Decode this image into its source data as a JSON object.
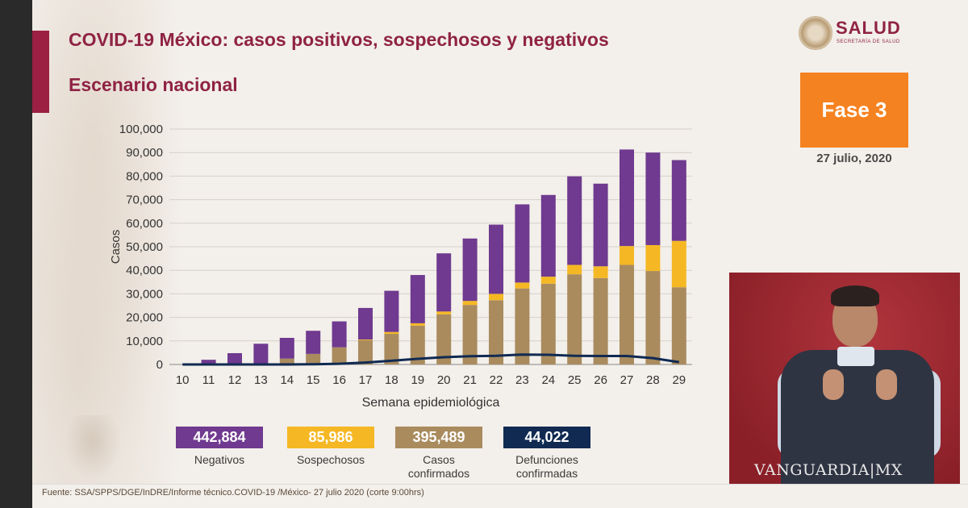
{
  "header": {
    "title": "COVID-19 México: casos positivos, sospechosos y negativos",
    "subtitle": "Escenario nacional"
  },
  "logo": {
    "name": "SALUD",
    "tagline": "SECRETARÍA DE SALUD"
  },
  "phase": {
    "label": "Fase 3",
    "date": "27 julio, 2020",
    "color": "#f58220"
  },
  "legend": [
    {
      "value": "442,884",
      "label": "Negativos",
      "color": "#6f3a8f"
    },
    {
      "value": "85,986",
      "label": "Sospechosos",
      "color": "#f5b824"
    },
    {
      "value": "395,489",
      "label": "Casos confirmados",
      "color": "#a98b5e"
    },
    {
      "value": "44,022",
      "label": "Defunciones confirmadas",
      "color": "#102a52"
    }
  ],
  "footer": {
    "source": "Fuente: SSA/SPPS/DGE/InDRE/Informe técnico.COVID-19 /México- 27 julio 2020 (corte 9:00hrs)"
  },
  "watermark": "VANGUARDIA",
  "watermark_suffix": "MX",
  "chart_data": {
    "type": "bar",
    "stacked": true,
    "ylabel": "Casos",
    "xlabel": "Semana epidemiológica",
    "ylim": [
      0,
      100000
    ],
    "yticks": [
      "0",
      "10,000",
      "20,000",
      "30,000",
      "40,000",
      "50,000",
      "60,000",
      "70,000",
      "80,000",
      "90,000",
      "100,000"
    ],
    "grid": true,
    "categories": [
      "10",
      "11",
      "12",
      "13",
      "14",
      "15",
      "16",
      "17",
      "18",
      "19",
      "20",
      "21",
      "22",
      "23",
      "24",
      "25",
      "26",
      "27",
      "28",
      "29"
    ],
    "series": [
      {
        "name": "Casos confirmados",
        "color": "#a98b5e",
        "values": [
          0,
          0,
          100,
          300,
          2500,
          4500,
          7300,
          10300,
          13000,
          16500,
          21300,
          25300,
          27300,
          32300,
          34300,
          38300,
          36700,
          42300,
          39700,
          32800
        ]
      },
      {
        "name": "Sospechosos",
        "color": "#f5b824",
        "values": [
          0,
          0,
          0,
          0,
          0,
          0,
          0,
          300,
          800,
          1000,
          1200,
          1700,
          2700,
          2500,
          3000,
          4000,
          5000,
          8000,
          11000,
          19700
        ]
      },
      {
        "name": "Negativos",
        "color": "#6f3a8f",
        "values": [
          0,
          2000,
          4700,
          8500,
          8800,
          9800,
          11000,
          13400,
          17500,
          20500,
          24700,
          26500,
          29400,
          33200,
          34700,
          37600,
          35100,
          41000,
          39300,
          34300
        ]
      },
      {
        "name": "Defunciones confirmadas",
        "type": "line",
        "color": "#102a52",
        "values": [
          0,
          0,
          0,
          0,
          0,
          100,
          300,
          800,
          1600,
          2400,
          3100,
          3500,
          3700,
          4200,
          4100,
          3700,
          3600,
          3600,
          2700,
          1000
        ]
      }
    ]
  }
}
